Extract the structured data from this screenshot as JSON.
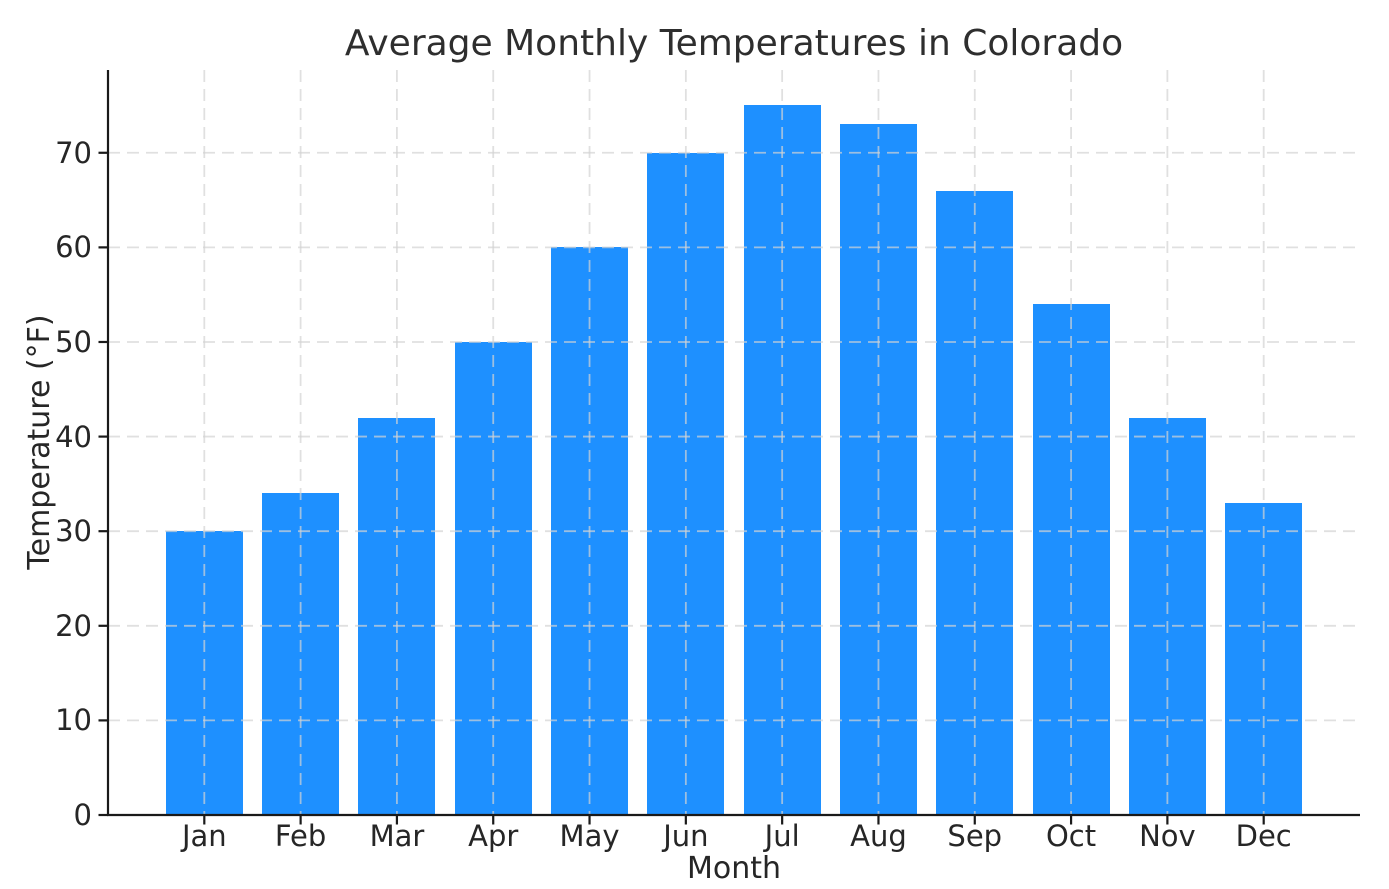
{
  "chart_data": {
    "type": "bar",
    "title": "Average Monthly Temperatures in Colorado",
    "xlabel": "Month",
    "ylabel": "Temperature (°F)",
    "categories": [
      "Jan",
      "Feb",
      "Mar",
      "Apr",
      "May",
      "Jun",
      "Jul",
      "Aug",
      "Sep",
      "Oct",
      "Nov",
      "Dec"
    ],
    "values": [
      30,
      34,
      42,
      50,
      60,
      70,
      75,
      73,
      66,
      54,
      42,
      33
    ],
    "ylim": [
      0,
      78.75
    ],
    "yticks": [
      0,
      10,
      20,
      30,
      40,
      50,
      60,
      70
    ],
    "grid": true,
    "grid_style": "dashed",
    "legend": "none",
    "colors": {
      "bar": "#1E90FF",
      "grid": "#d3d3d3",
      "spine": "#1a1a1a",
      "text": "#262626"
    }
  }
}
